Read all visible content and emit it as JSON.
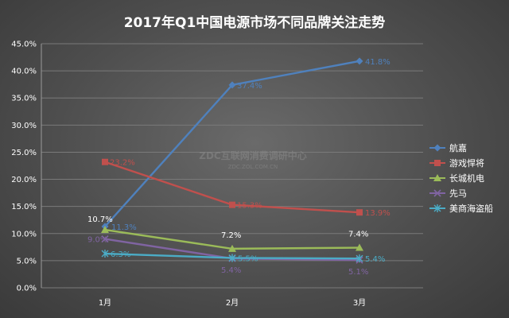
{
  "chart_data": {
    "type": "line",
    "title": "2017年Q1中国电源市场不同品牌关注走势",
    "categories": [
      "1月",
      "2月",
      "3月"
    ],
    "ylim": [
      0,
      45
    ],
    "yticks": [
      "0.0%",
      "5.0%",
      "10.0%",
      "15.0%",
      "20.0%",
      "25.0%",
      "30.0%",
      "35.0%",
      "40.0%",
      "45.0%"
    ],
    "grid": true,
    "legend_position": "right",
    "series": [
      {
        "name": "航嘉",
        "color": "#4f81bd",
        "marker": "diamond",
        "values": [
          11.3,
          37.4,
          41.8
        ],
        "labels": [
          "11.3%",
          "37.4%",
          "41.8%"
        ]
      },
      {
        "name": "游戏悍将",
        "color": "#c0504d",
        "marker": "square",
        "values": [
          23.2,
          15.3,
          13.9
        ],
        "labels": [
          "23.2%",
          "15.3%",
          "13.9%"
        ]
      },
      {
        "name": "长城机电",
        "color": "#9bbb59",
        "marker": "triangle",
        "values": [
          10.7,
          7.2,
          7.4
        ],
        "labels": [
          "10.7%",
          "7.2%",
          "7.4%"
        ]
      },
      {
        "name": "先马",
        "color": "#8064a2",
        "marker": "x",
        "values": [
          9.0,
          5.4,
          5.1
        ],
        "labels": [
          "9.0%",
          "5.4%",
          "5.1%"
        ]
      },
      {
        "name": "美商海盗船",
        "color": "#4bacc6",
        "marker": "star",
        "values": [
          6.3,
          5.5,
          5.4
        ],
        "labels": [
          "6.3%",
          "5.5%",
          "5.4%"
        ]
      }
    ]
  },
  "watermark": {
    "main": "ZDC互联网消费调研中心",
    "sub": "ZDC.ZOL.COM.CN"
  }
}
